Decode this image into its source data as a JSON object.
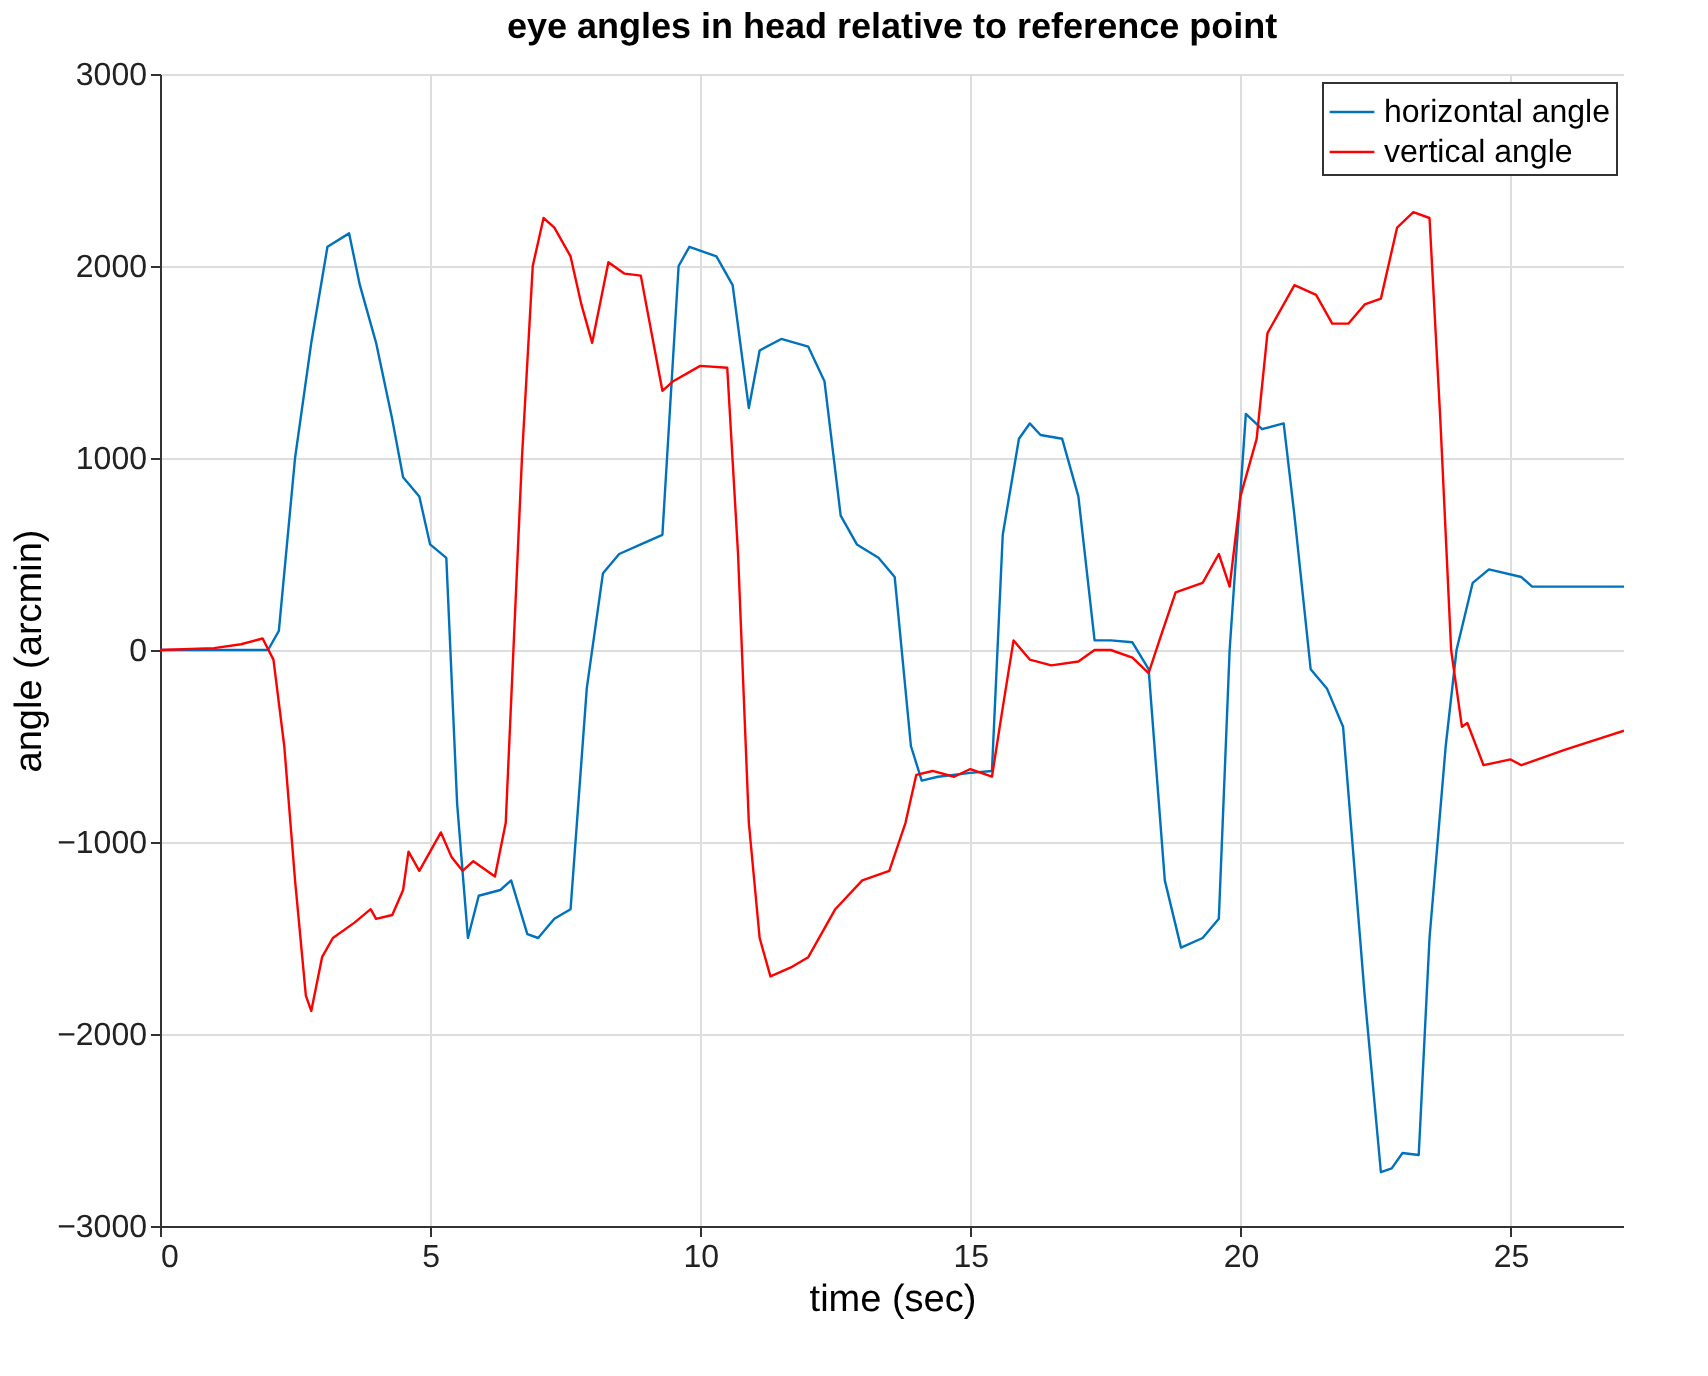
{
  "chart_data": {
    "type": "line",
    "title": "eye angles in head relative to reference point",
    "xlabel": "time (sec)",
    "ylabel": "angle (arcmin)",
    "xlim": [
      0,
      27.1
    ],
    "xticks": [
      0,
      5,
      10,
      15,
      20,
      25
    ],
    "ylim": [
      -3000,
      3000
    ],
    "yticks": [
      -3000,
      -2000,
      -1000,
      0,
      1000,
      2000,
      3000
    ],
    "grid": true,
    "legend": "top right",
    "line_style": "solid",
    "marker": "none",
    "series": [
      {
        "name": "horizontal angle",
        "color": "#0072bd",
        "x": [
          0,
          2.0,
          2.2,
          2.5,
          2.8,
          3.1,
          3.5,
          3.7,
          4.0,
          4.3,
          4.5,
          4.8,
          5.0,
          5.3,
          5.5,
          5.7,
          5.9,
          6.3,
          6.5,
          6.8,
          7.0,
          7.3,
          7.6,
          7.9,
          8.2,
          8.5,
          8.9,
          9.3,
          9.6,
          9.8,
          10.3,
          10.6,
          10.9,
          11.1,
          11.5,
          12.0,
          12.3,
          12.6,
          12.9,
          13.3,
          13.6,
          13.9,
          14.1,
          14.4,
          15.0,
          15.4,
          15.6,
          15.9,
          16.1,
          16.3,
          16.7,
          17.0,
          17.3,
          17.6,
          18.0,
          18.3,
          18.6,
          18.9,
          19.3,
          19.6,
          19.8,
          20.1,
          20.4,
          20.8,
          21.0,
          21.3,
          21.6,
          21.9,
          22.3,
          22.6,
          22.8,
          23.0,
          23.3,
          23.5,
          23.8,
          24.0,
          24.3,
          24.6,
          25.2,
          25.4,
          27.1
        ],
        "values": [
          0,
          0,
          100,
          1000,
          1600,
          2100,
          2170,
          1900,
          1600,
          1200,
          900,
          800,
          550,
          480,
          -800,
          -1500,
          -1280,
          -1250,
          -1200,
          -1480,
          -1500,
          -1400,
          -1350,
          -200,
          400,
          500,
          550,
          600,
          2000,
          2100,
          2050,
          1900,
          1260,
          1560,
          1620,
          1580,
          1400,
          700,
          550,
          480,
          380,
          -500,
          -680,
          -660,
          -640,
          -630,
          600,
          1100,
          1180,
          1120,
          1100,
          800,
          50,
          50,
          40,
          -100,
          -1200,
          -1550,
          -1500,
          -1400,
          0,
          1230,
          1150,
          1180,
          700,
          -100,
          -200,
          -400,
          -1800,
          -2720,
          -2700,
          -2620,
          -2630,
          -1500,
          -500,
          0,
          350,
          420,
          380,
          330,
          330
        ]
      },
      {
        "name": "vertical angle",
        "color": "#ff0000",
        "x": [
          0,
          1.0,
          1.5,
          1.9,
          2.1,
          2.3,
          2.5,
          2.7,
          2.8,
          3.0,
          3.2,
          3.6,
          3.9,
          4.0,
          4.3,
          4.5,
          4.6,
          4.8,
          5.0,
          5.2,
          5.4,
          5.6,
          5.8,
          6.2,
          6.4,
          6.7,
          6.9,
          7.1,
          7.3,
          7.6,
          7.8,
          8.0,
          8.3,
          8.6,
          8.9,
          9.2,
          9.3,
          9.5,
          10.0,
          10.5,
          10.7,
          10.9,
          11.1,
          11.3,
          11.7,
          12.0,
          12.3,
          12.5,
          13.0,
          13.5,
          13.8,
          14.0,
          14.3,
          14.7,
          15.0,
          15.4,
          15.6,
          15.8,
          16.1,
          16.5,
          17.0,
          17.3,
          17.6,
          18.0,
          18.3,
          18.5,
          18.8,
          19.3,
          19.6,
          19.8,
          20.0,
          20.3,
          20.5,
          20.8,
          21.0,
          21.4,
          21.7,
          22.0,
          22.3,
          22.6,
          22.9,
          23.2,
          23.5,
          23.7,
          23.9,
          24.1,
          24.2,
          24.5,
          25.0,
          25.2,
          26.0,
          27.1
        ],
        "values": [
          0,
          10,
          30,
          60,
          -50,
          -500,
          -1200,
          -1800,
          -1880,
          -1600,
          -1500,
          -1420,
          -1350,
          -1400,
          -1380,
          -1250,
          -1050,
          -1150,
          -1050,
          -950,
          -1080,
          -1150,
          -1100,
          -1180,
          -900,
          1000,
          2000,
          2250,
          2200,
          2050,
          1800,
          1600,
          2020,
          1960,
          1950,
          1500,
          1350,
          1400,
          1480,
          1470,
          500,
          -900,
          -1500,
          -1700,
          -1650,
          -1600,
          -1450,
          -1350,
          -1200,
          -1150,
          -900,
          -650,
          -630,
          -660,
          -620,
          -660,
          -300,
          50,
          -50,
          -80,
          -60,
          0,
          0,
          -40,
          -120,
          50,
          300,
          350,
          500,
          330,
          800,
          1100,
          1650,
          1800,
          1900,
          1850,
          1700,
          1700,
          1800,
          1830,
          2200,
          2280,
          2250,
          1200,
          0,
          -400,
          -380,
          -600,
          -570,
          -600,
          -520,
          -420
        ]
      }
    ]
  }
}
